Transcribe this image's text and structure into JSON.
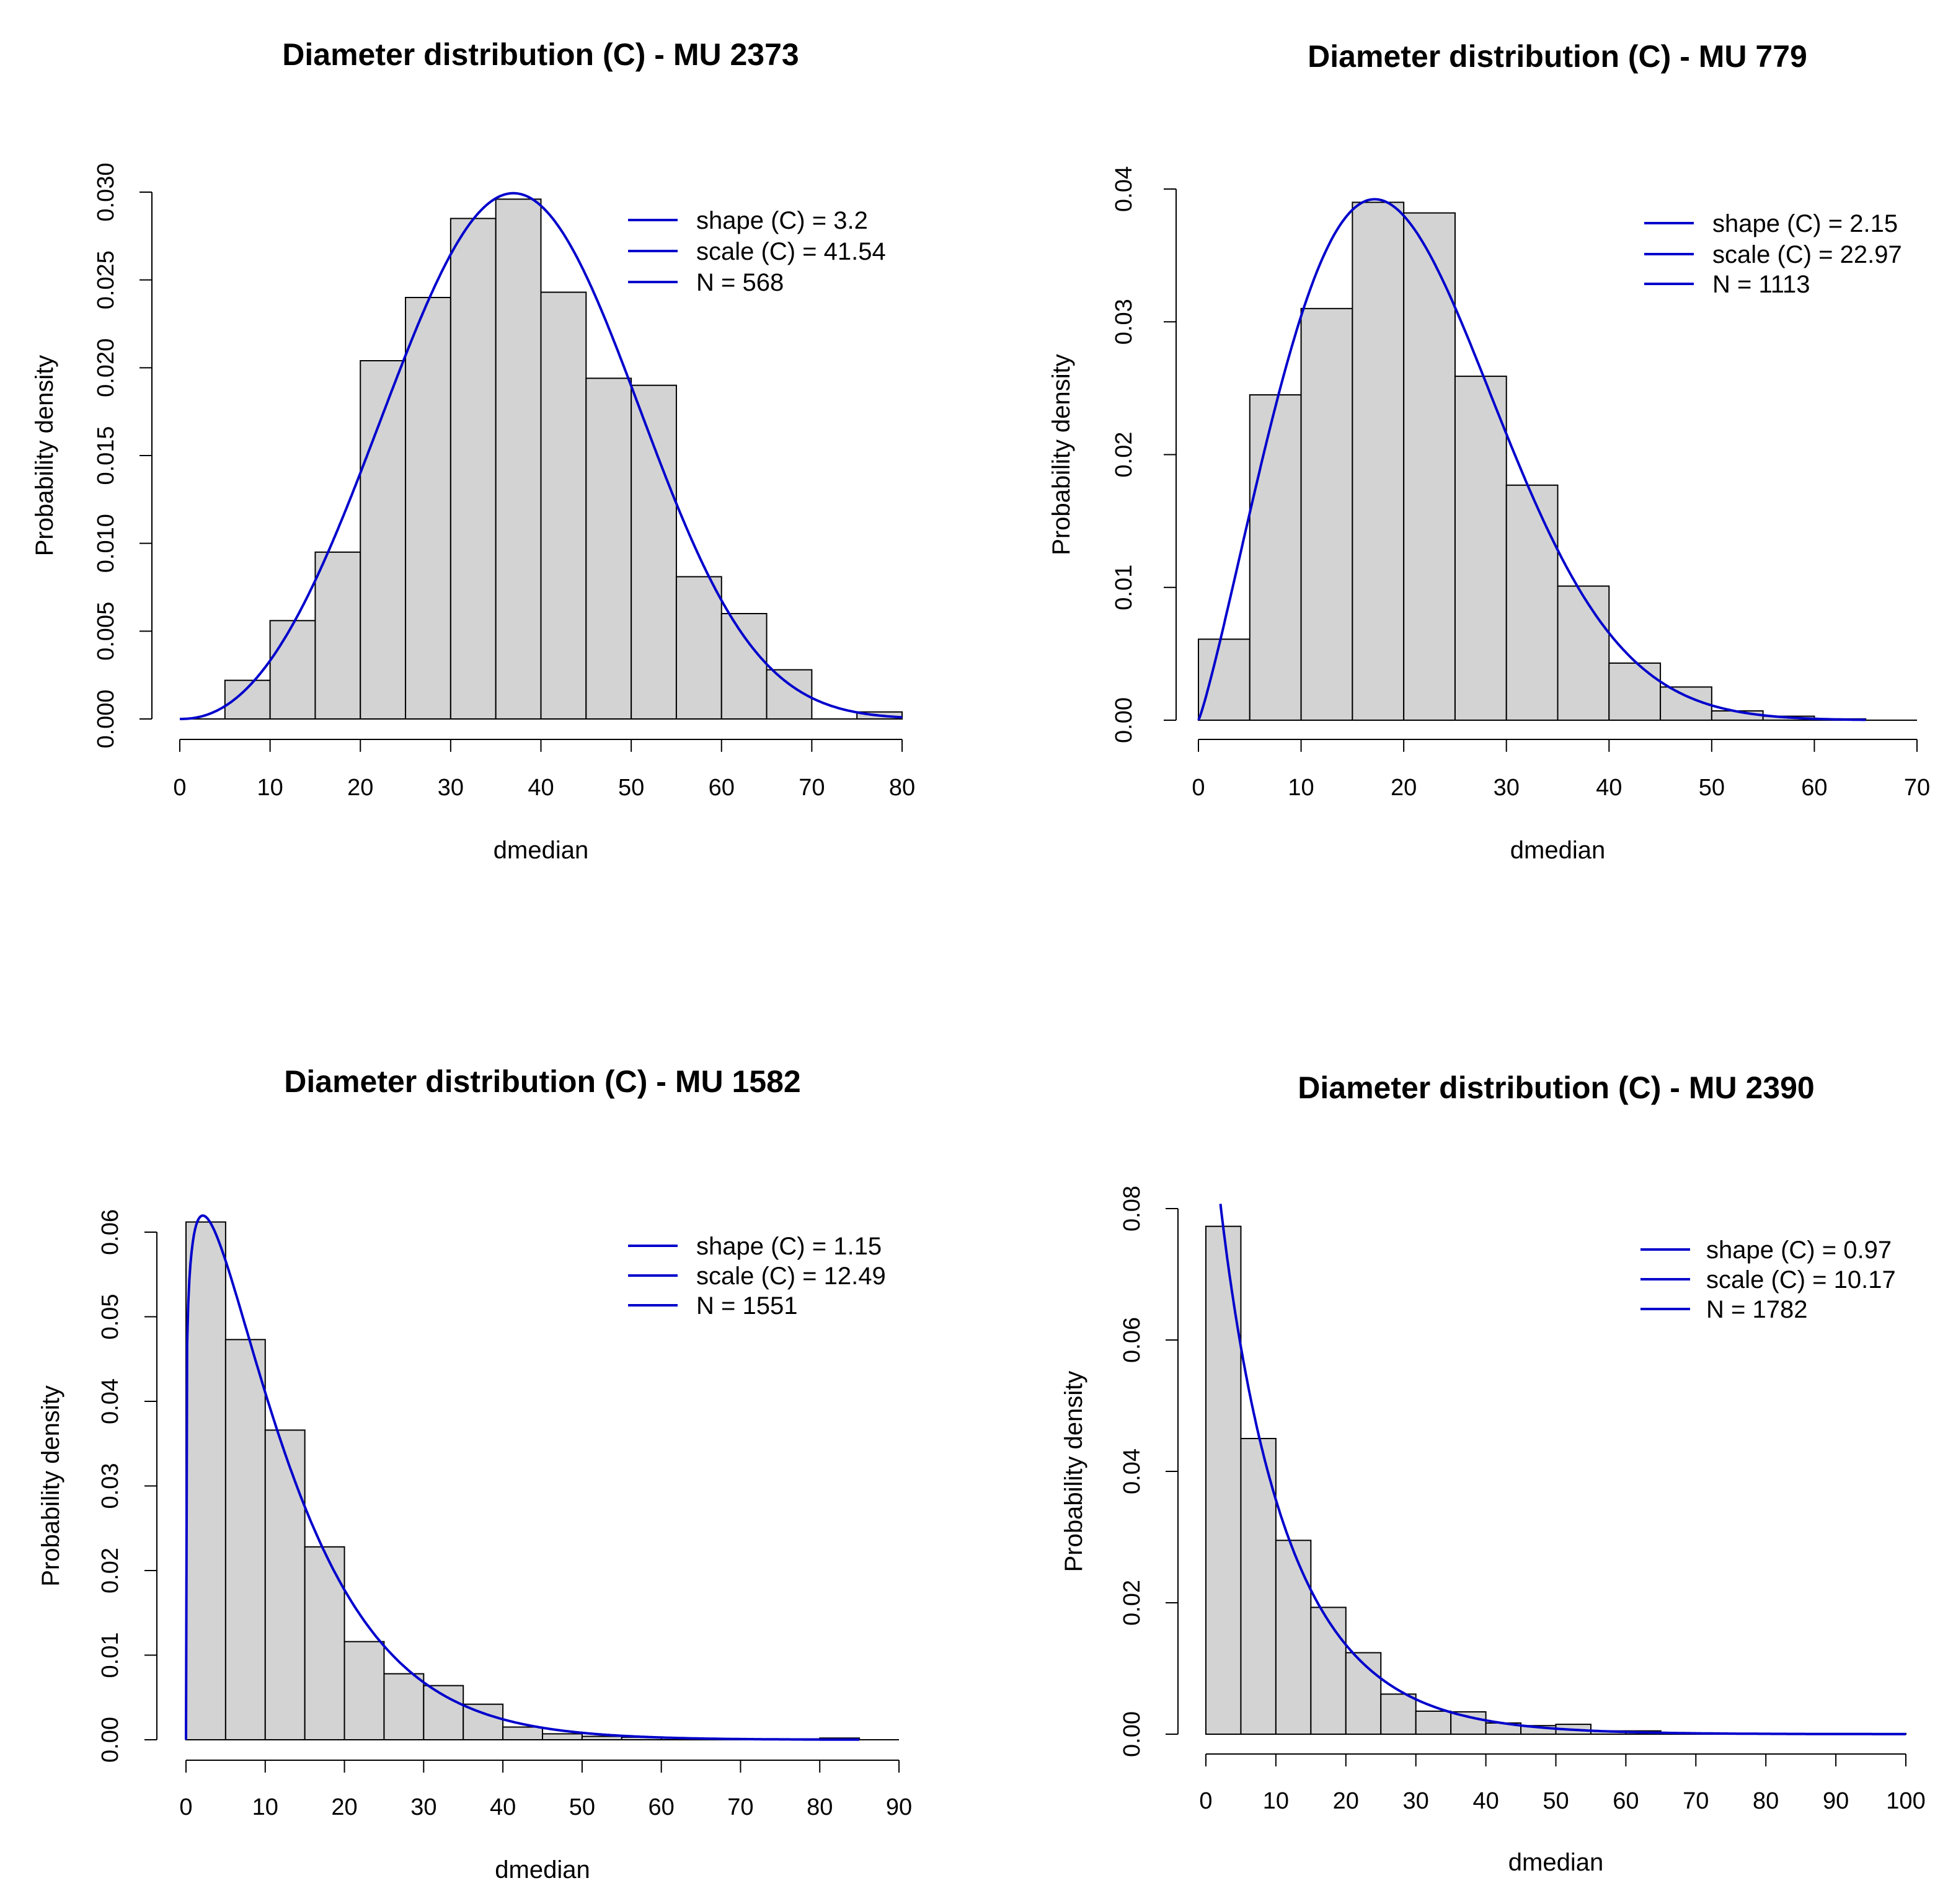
{
  "chart_data": [
    {
      "type": "bar",
      "title": "Diameter distribution (C) - MU 2373",
      "xlabel": "dmedian",
      "ylabel": "Probability density",
      "xlim": [
        0,
        80
      ],
      "ylim": [
        0,
        0.03
      ],
      "xticks": [
        "0",
        "10",
        "20",
        "30",
        "40",
        "50",
        "60",
        "70",
        "80"
      ],
      "yticks": [
        "0.000",
        "0.005",
        "0.010",
        "0.015",
        "0.020",
        "0.025",
        "0.030"
      ],
      "bin_width": 5,
      "bins": [
        0,
        5,
        10,
        15,
        20,
        25,
        30,
        35,
        40,
        45,
        50,
        55,
        60,
        65,
        70,
        75
      ],
      "values": [
        0,
        0.0022,
        0.0056,
        0.0095,
        0.0204,
        0.024,
        0.0285,
        0.0296,
        0.0243,
        0.0194,
        0.019,
        0.0081,
        0.006,
        0.0028,
        0,
        0.0004
      ],
      "weibull": {
        "shape": 3.2,
        "scale": 41.54
      },
      "curve_color": "#0000cc",
      "legend": [
        "shape (C) = 3.2",
        "scale (C) = 41.54",
        "N = 568"
      ],
      "legend_position": "top-right"
    },
    {
      "type": "bar",
      "title": "Diameter distribution (C) - MU 779",
      "xlabel": "dmedian",
      "ylabel": "Probability density",
      "xlim": [
        0,
        70
      ],
      "ylim": [
        0,
        0.04
      ],
      "xticks": [
        "0",
        "10",
        "20",
        "30",
        "40",
        "50",
        "60",
        "70"
      ],
      "yticks": [
        "0.00",
        "0.01",
        "0.02",
        "0.03",
        "0.04"
      ],
      "bin_width": 5,
      "bins": [
        0,
        5,
        10,
        15,
        20,
        25,
        30,
        35,
        40,
        45,
        50,
        55,
        60
      ],
      "values": [
        0.0061,
        0.0245,
        0.031,
        0.039,
        0.0382,
        0.0259,
        0.0177,
        0.0101,
        0.0043,
        0.0025,
        0.0007,
        0.0003,
        0.0001
      ],
      "weibull": {
        "shape": 2.15,
        "scale": 22.97
      },
      "curve_color": "#0000cc",
      "legend": [
        "shape (C) = 2.15",
        "scale (C) = 22.97",
        "N = 1113"
      ],
      "legend_position": "top-right"
    },
    {
      "type": "bar",
      "title": "Diameter distribution (C) - MU 1582",
      "xlabel": "dmedian",
      "ylabel": "Probability density",
      "xlim": [
        0,
        90
      ],
      "ylim": [
        0,
        0.06
      ],
      "xticks": [
        "0",
        "10",
        "20",
        "30",
        "40",
        "50",
        "60",
        "70",
        "80",
        "90"
      ],
      "yticks": [
        "0.00",
        "0.01",
        "0.02",
        "0.03",
        "0.04",
        "0.05",
        "0.06"
      ],
      "bin_width": 5,
      "bins": [
        0,
        5,
        10,
        15,
        20,
        25,
        30,
        35,
        40,
        45,
        50,
        55,
        60,
        65,
        70,
        75,
        80
      ],
      "values": [
        0.0612,
        0.0473,
        0.0366,
        0.0228,
        0.0116,
        0.0078,
        0.0064,
        0.0042,
        0.0015,
        0.0007,
        0.0004,
        0.0003,
        0.0002,
        0.0001,
        0.0001,
        0.0001,
        0.0002
      ],
      "weibull": {
        "shape": 1.15,
        "scale": 12.49
      },
      "curve_color": "#0000cc",
      "legend": [
        "shape (C) = 1.15",
        "scale (C) = 12.49",
        "N = 1551"
      ],
      "legend_position": "top-right"
    },
    {
      "type": "bar",
      "title": "Diameter distribution (C) - MU 2390",
      "xlabel": "dmedian",
      "ylabel": "Probability density",
      "xlim": [
        0,
        100
      ],
      "ylim": [
        0,
        0.08
      ],
      "xticks": [
        "0",
        "10",
        "20",
        "30",
        "40",
        "50",
        "60",
        "70",
        "80",
        "90",
        "100"
      ],
      "yticks": [
        "0.00",
        "0.02",
        "0.04",
        "0.06",
        "0.08"
      ],
      "bin_width": 5,
      "bins": [
        0,
        5,
        10,
        15,
        20,
        25,
        30,
        35,
        40,
        45,
        50,
        55,
        60,
        65,
        70,
        75,
        80,
        85,
        90,
        95
      ],
      "values": [
        0.0773,
        0.045,
        0.0295,
        0.0193,
        0.0124,
        0.0061,
        0.0035,
        0.0034,
        0.0017,
        0.0013,
        0.0015,
        0.0005,
        0.0005,
        0.0002,
        0.0001,
        0.0001,
        0.0001,
        0.0001,
        0.0001,
        0.0001
      ],
      "weibull": {
        "shape": 0.97,
        "scale": 10.17
      },
      "curve_color": "#0000cc",
      "legend": [
        "shape (C) = 0.97",
        "scale (C) = 10.17",
        "N = 1782"
      ],
      "legend_position": "top-right"
    }
  ]
}
